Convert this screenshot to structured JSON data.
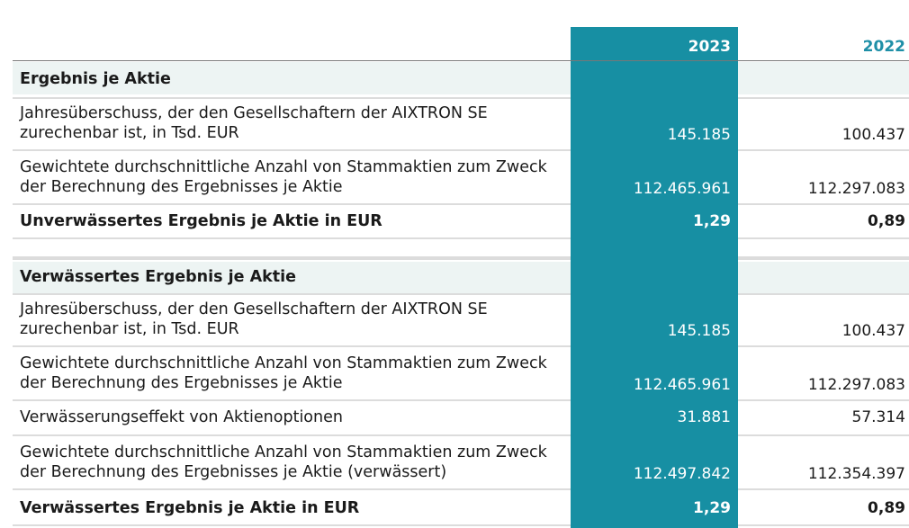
{
  "header": {
    "year_current": "2023",
    "year_prior": "2022"
  },
  "section1": {
    "title": "Ergebnis je Aktie",
    "rows": [
      {
        "label": "Jahresüberschuss, der den Gesellschaftern der AIXTRON SE zurechenbar ist, in Tsd. EUR",
        "v2023": "145.185",
        "v2022": "100.437"
      },
      {
        "label": "Gewichtete durchschnittliche Anzahl von Stammaktien zum Zweck der Berechnung des Ergebnisses je Aktie",
        "v2023": "112.465.961",
        "v2022": "112.297.083"
      },
      {
        "label": "Unverwässertes Ergebnis je Aktie in EUR",
        "v2023": "1,29",
        "v2022": "0,89"
      }
    ]
  },
  "section2": {
    "title": "Verwässertes Ergebnis je Aktie",
    "rows": [
      {
        "label": "Jahresüberschuss, der den Gesellschaftern der AIXTRON SE zurechenbar ist, in Tsd. EUR",
        "v2023": "145.185",
        "v2022": "100.437"
      },
      {
        "label": "Gewichtete durchschnittliche Anzahl von Stammaktien zum Zweck der Berechnung des Ergebnisses je Aktie",
        "v2023": "112.465.961",
        "v2022": "112.297.083"
      },
      {
        "label": "Verwässerungseffekt von Aktienoptionen",
        "v2023": "31.881",
        "v2022": "57.314"
      },
      {
        "label": "Gewichtete durchschnittliche Anzahl von Stammaktien zum Zweck der Berechnung des Ergebnisses je Aktie (verwässert)",
        "v2023": "112.497.842",
        "v2022": "112.354.397"
      },
      {
        "label": "Verwässertes Ergebnis je Aktie in EUR",
        "v2023": "1,29",
        "v2022": "0,89"
      }
    ]
  },
  "colors": {
    "highlight_column": "#178fa3",
    "prior_year_header": "#1e8fa7",
    "section_shade": "#edf4f3"
  }
}
